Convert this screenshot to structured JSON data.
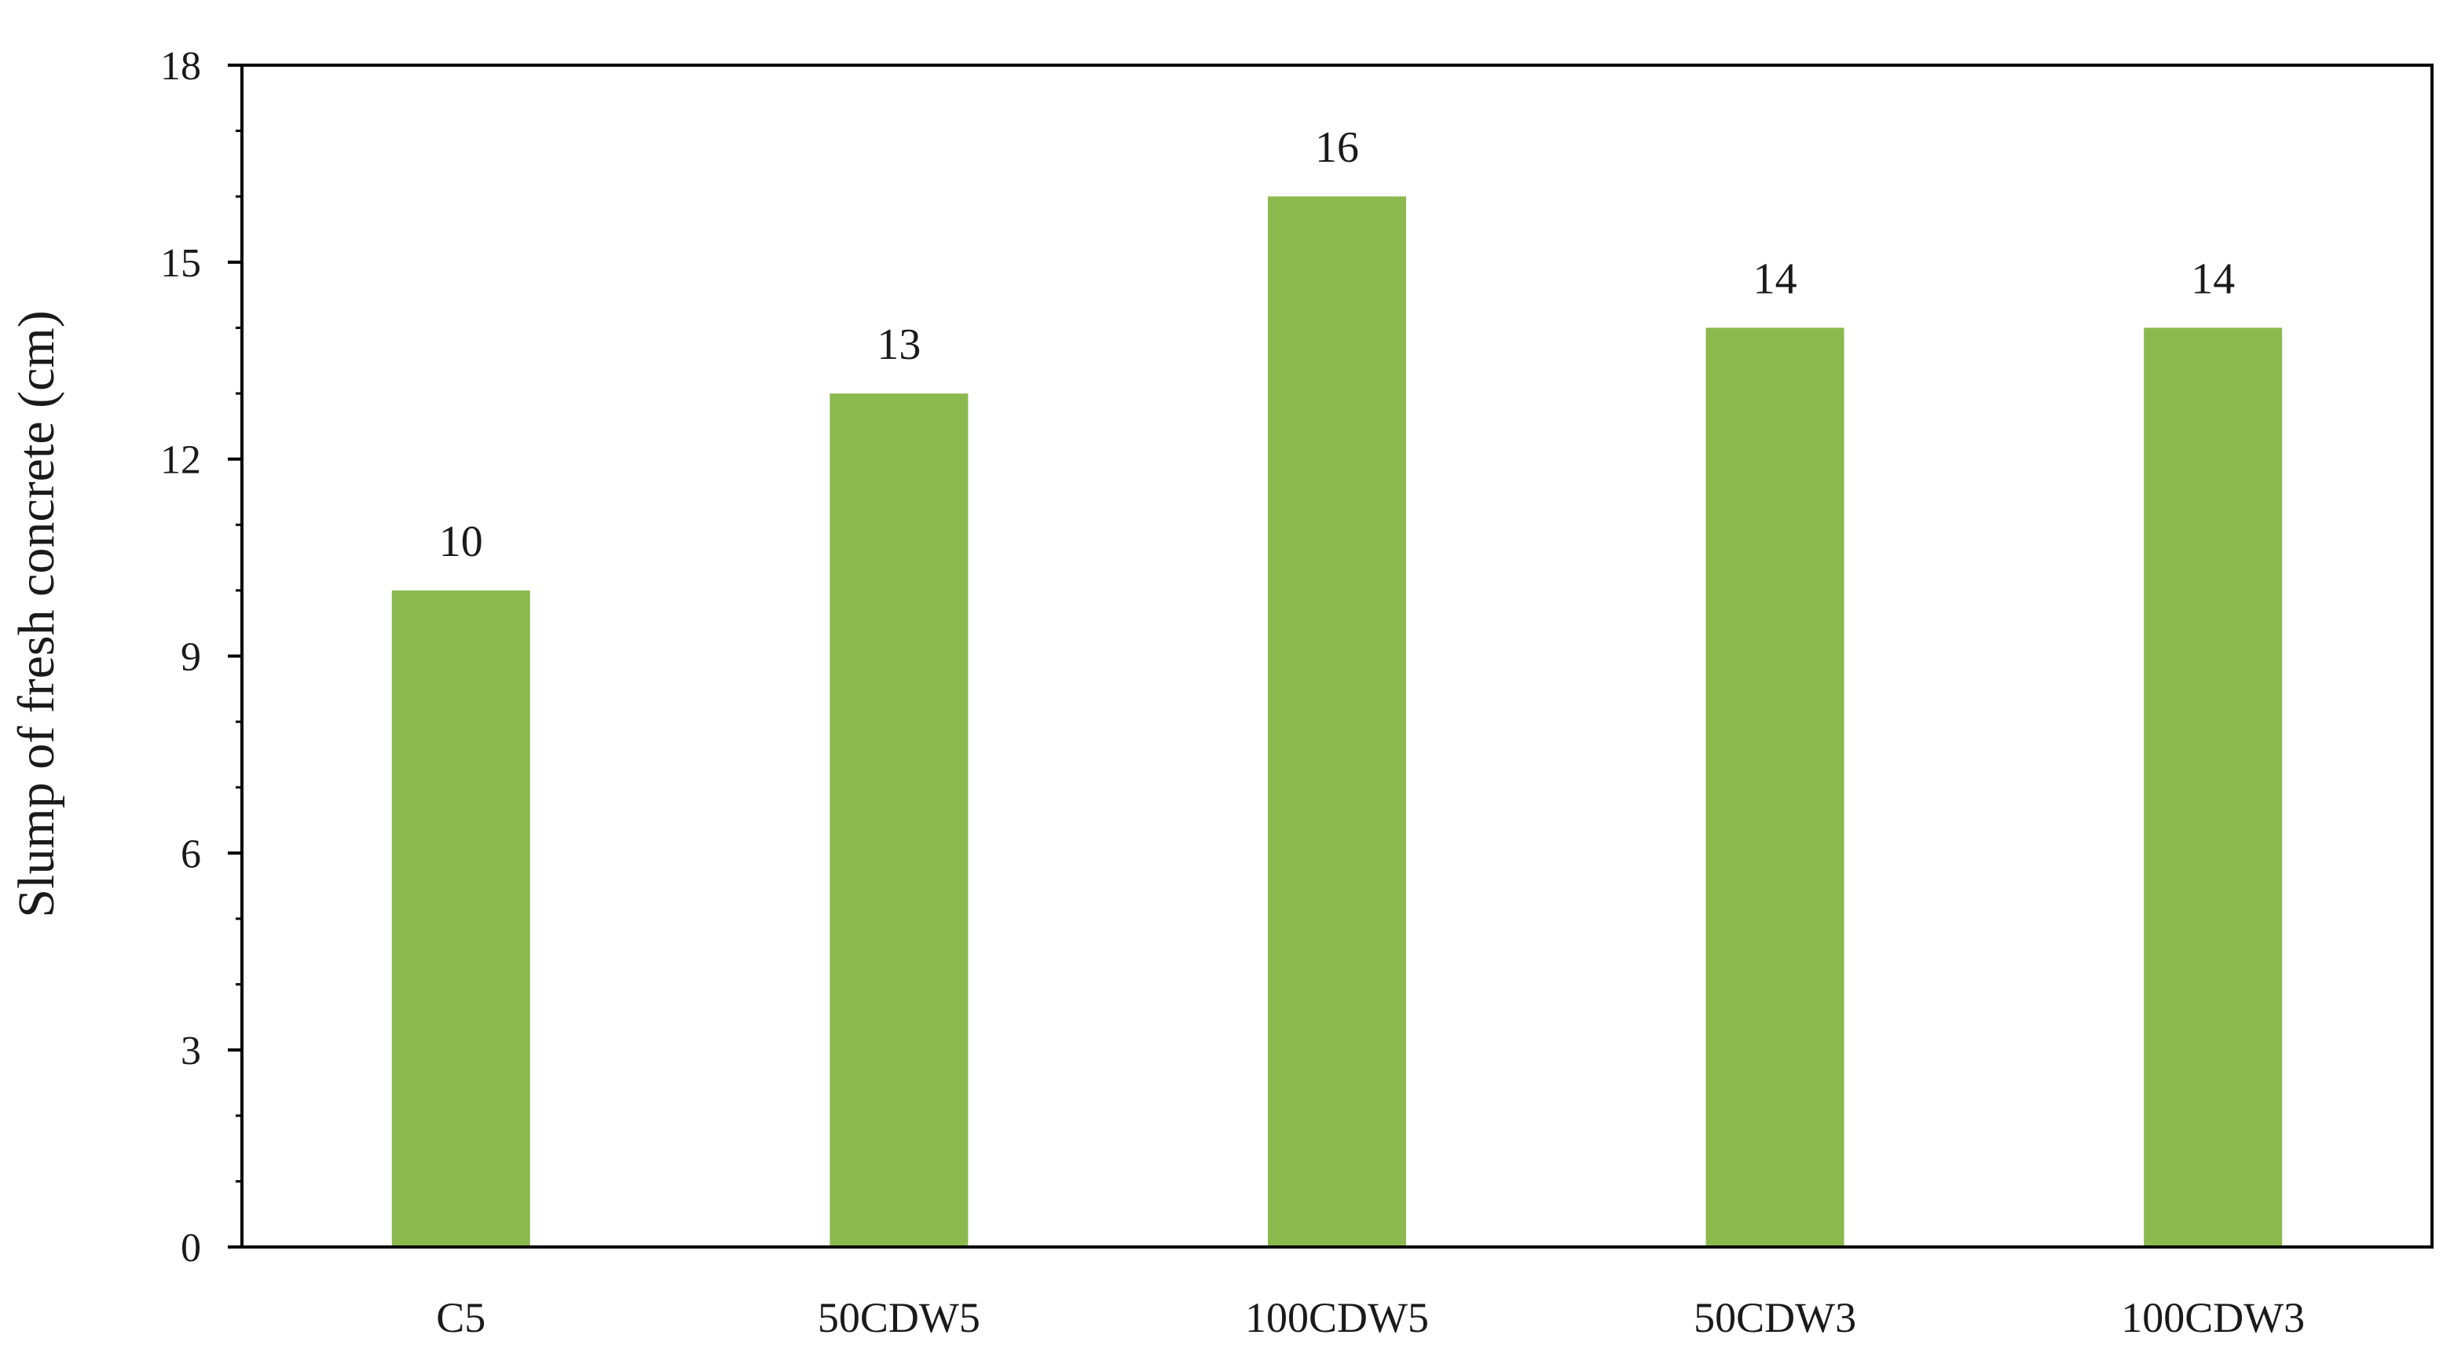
{
  "chart_data": {
    "type": "bar",
    "categories": [
      "C5",
      "50CDW5",
      "100CDW5",
      "50CDW3",
      "100CDW3"
    ],
    "values": [
      10,
      13,
      16,
      14,
      14
    ],
    "data_labels": [
      "10",
      "13",
      "16",
      "14",
      "14"
    ],
    "ylabel": "Slump of fresh concrete (cm)",
    "xlabel": "",
    "ylim": [
      0,
      18
    ],
    "yticks": [
      0,
      3,
      6,
      9,
      12,
      15,
      18
    ],
    "ytick_labels": [
      "0",
      "3",
      "6",
      "9",
      "12",
      "15",
      "18"
    ],
    "minor_ytick_step": 1,
    "grid": false,
    "legend": "none",
    "bar_color": "#8cb94e",
    "axis_color": "#000000"
  }
}
